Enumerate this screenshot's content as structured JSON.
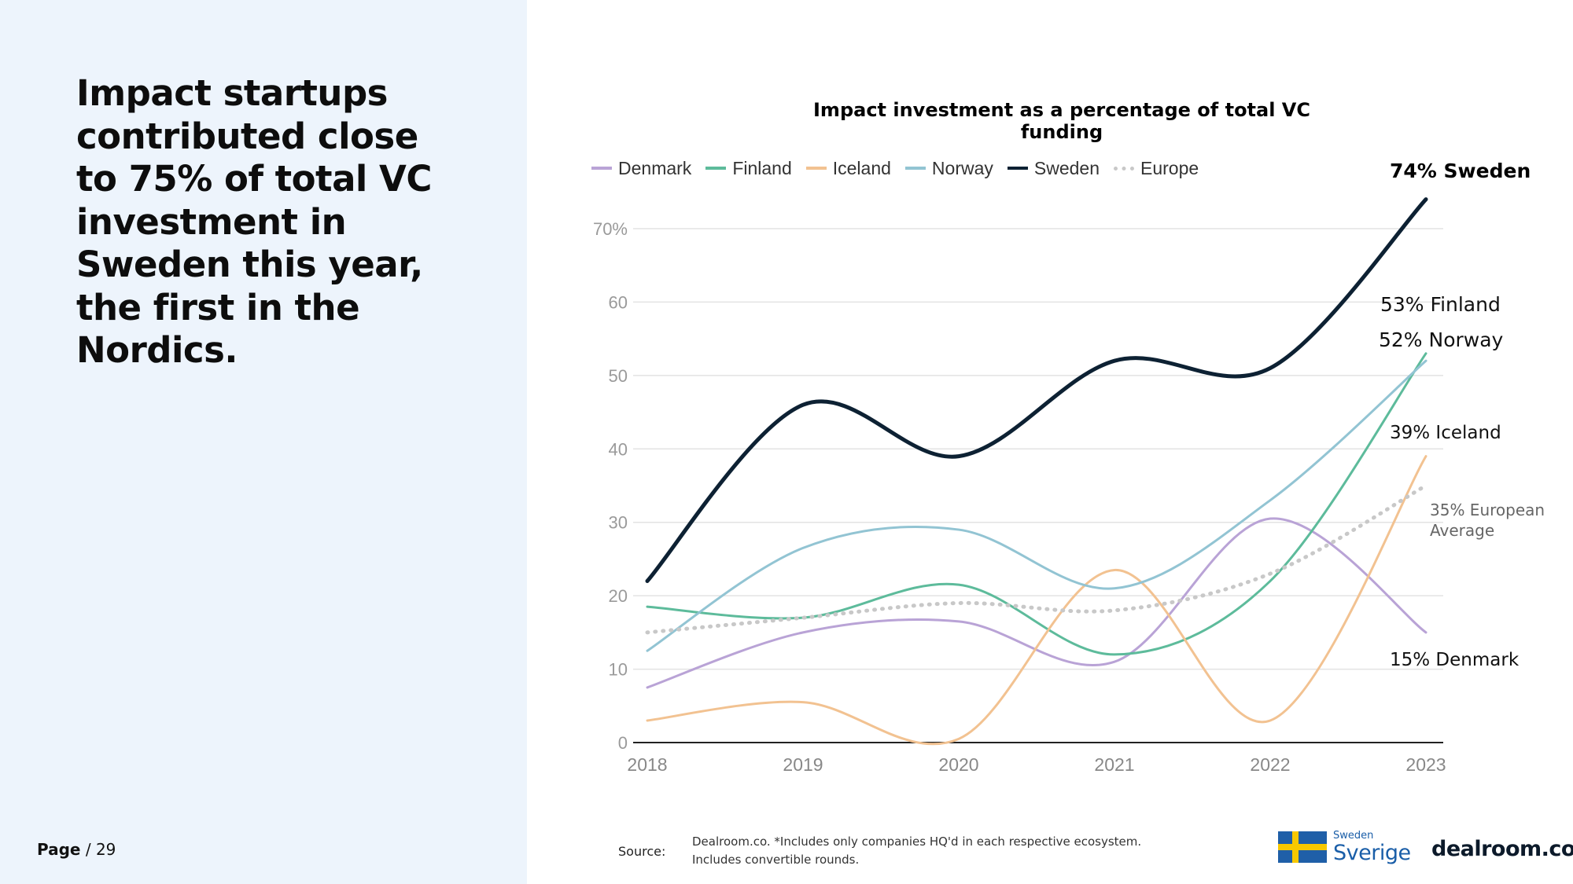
{
  "left": {
    "headline": "Impact startups contributed close to 75% of total VC investment in Sweden this year, the first in the Nordics.",
    "page_label": "Page",
    "page_number": "/ 29"
  },
  "legend": {
    "items": [
      {
        "name": "Denmark",
        "color": "#b9a3d6",
        "style": "solid"
      },
      {
        "name": "Finland",
        "color": "#5dbb9b",
        "style": "solid"
      },
      {
        "name": "Iceland",
        "color": "#f2c291",
        "style": "solid"
      },
      {
        "name": "Norway",
        "color": "#92c4d3",
        "style": "solid"
      },
      {
        "name": "Sweden",
        "color": "#0d2133",
        "style": "solid"
      },
      {
        "name": "Europe",
        "color": "#c8c8c8",
        "style": "dotted"
      }
    ]
  },
  "chart_data": {
    "type": "line",
    "title": "Impact investment as a percentage of total VC funding",
    "xlabel": "",
    "ylabel": "",
    "categories": [
      "2018",
      "2019",
      "2020",
      "2021",
      "2022",
      "2023"
    ],
    "ylim": [
      0,
      70
    ],
    "yticks": [
      "0",
      "10",
      "20",
      "30",
      "40",
      "50",
      "60",
      "70%"
    ],
    "grid": true,
    "series": [
      {
        "name": "Denmark",
        "color": "#b9a3d6",
        "values": [
          7.5,
          15,
          16.5,
          11,
          30.5,
          15
        ],
        "width": 3,
        "dotted": false
      },
      {
        "name": "Finland",
        "color": "#5dbb9b",
        "values": [
          18.5,
          17,
          21.5,
          12,
          22,
          53
        ],
        "width": 3,
        "dotted": false
      },
      {
        "name": "Iceland",
        "color": "#f2c291",
        "values": [
          3,
          5.5,
          0.5,
          23.5,
          3,
          39
        ],
        "width": 3,
        "dotted": false
      },
      {
        "name": "Norway",
        "color": "#92c4d3",
        "values": [
          12.5,
          26.5,
          29,
          21,
          33,
          52
        ],
        "width": 3,
        "dotted": false
      },
      {
        "name": "Europe",
        "color": "#c8c8c8",
        "values": [
          15,
          17,
          19,
          18,
          23,
          35
        ],
        "width": 5,
        "dotted": true
      },
      {
        "name": "Sweden",
        "color": "#0d2133",
        "values": [
          22,
          46,
          39,
          52,
          51,
          74
        ],
        "width": 5,
        "dotted": false
      }
    ],
    "annotations": [
      {
        "text": "74% Sweden",
        "bold": true,
        "color": "#000000"
      },
      {
        "text": "53% Finland",
        "bold": false,
        "color": "#111111"
      },
      {
        "text": "52% Norway",
        "bold": false,
        "color": "#111111"
      },
      {
        "text": "39% Iceland",
        "bold": false,
        "color": "#111111"
      },
      {
        "text": "35% European",
        "bold": false,
        "color": "#666666"
      },
      {
        "text": "Average",
        "bold": false,
        "color": "#666666"
      },
      {
        "text": "15% Denmark",
        "bold": false,
        "color": "#111111"
      }
    ]
  },
  "footer": {
    "source_label": "Source:",
    "source_text": "Dealroom.co. *Includes only companies HQ'd in each respective ecosystem. Includes convertible rounds.",
    "sverige_small": "Sweden",
    "sverige_big": "Sverige",
    "dealroom": "dealroom.co"
  },
  "colors": {
    "left_panel_bg": "#edf4fc",
    "flag_blue": "#1f5fa8",
    "flag_yellow": "#f7c800"
  }
}
